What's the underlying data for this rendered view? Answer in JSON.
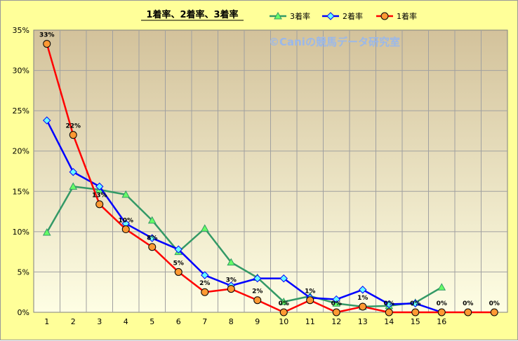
{
  "chart_data": {
    "type": "line",
    "title": "1着率、2着率、3着率",
    "watermark": "©Caniの競馬データ研究室",
    "xlabel": "",
    "ylabel": "",
    "categories": [
      "1",
      "2",
      "3",
      "4",
      "5",
      "6",
      "7",
      "8",
      "9",
      "10",
      "11",
      "12",
      "13",
      "14",
      "15",
      "16",
      "",
      ""
    ],
    "ylim": [
      0,
      35
    ],
    "yticks": [
      "0%",
      "5%",
      "10%",
      "15%",
      "20%",
      "25%",
      "30%",
      "35%"
    ],
    "grid": true,
    "legend_position": "top-right",
    "series": [
      {
        "name": "3着率",
        "color": "#339966",
        "marker": "triangle",
        "values": [
          9.9,
          15.6,
          15.2,
          14.6,
          11.4,
          7.5,
          10.4,
          6.2,
          4.3,
          1.3,
          2.0,
          1.1,
          0.7,
          0.8,
          1.2,
          3.1,
          null,
          null
        ]
      },
      {
        "name": "2着率",
        "color": "#0000ff",
        "marker": "diamond",
        "values": [
          23.8,
          17.4,
          15.6,
          11.0,
          9.2,
          7.8,
          4.6,
          3.3,
          4.2,
          4.2,
          1.8,
          1.6,
          2.8,
          1.0,
          1.1,
          0.0,
          null,
          null
        ]
      },
      {
        "name": "1着率",
        "color": "#ff0000",
        "marker": "circle",
        "values": [
          33.3,
          22.0,
          13.4,
          10.3,
          8.1,
          5.0,
          2.5,
          2.9,
          1.5,
          0.0,
          1.5,
          0.0,
          0.7,
          0.0,
          0.0,
          0.0,
          0.0,
          0.0
        ]
      }
    ],
    "data_labels": [
      "33%",
      "22%",
      "13%",
      "10%",
      "8%",
      "5%",
      "2%",
      "3%",
      "2%",
      "0%",
      "1%",
      "0%",
      "1%",
      "0%",
      "0%",
      "0%",
      "0%",
      "0%"
    ]
  },
  "colors": {
    "outer_bg": "#ffff99",
    "plot_top": "#d3c29b",
    "plot_bottom": "#fefee4"
  }
}
